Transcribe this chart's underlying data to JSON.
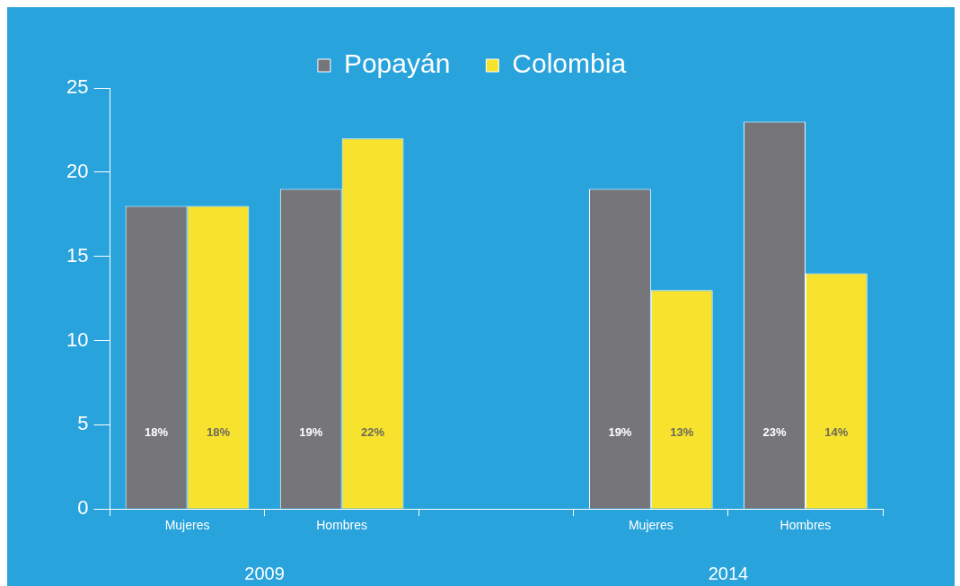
{
  "chart_data": {
    "type": "bar",
    "categories": [
      "Mujeres",
      "Hombres",
      null,
      "Mujeres",
      "Hombres"
    ],
    "series": [
      {
        "name": "Popayán",
        "color": "#76767a",
        "values": [
          18,
          19,
          null,
          19,
          23
        ],
        "value_labels": [
          "18%",
          "19%",
          null,
          "19%",
          "23%"
        ]
      },
      {
        "name": "Colombia",
        "color": "#f7e22e",
        "values": [
          18,
          22,
          null,
          13,
          14
        ],
        "value_labels": [
          "18%",
          "22%",
          null,
          "13%",
          "14%"
        ]
      }
    ],
    "ylim": [
      0,
      25
    ],
    "yticks": [
      0,
      5,
      10,
      15,
      20,
      25
    ],
    "grid": false,
    "legend": "top",
    "annotations": [
      "2009",
      "2014"
    ]
  }
}
